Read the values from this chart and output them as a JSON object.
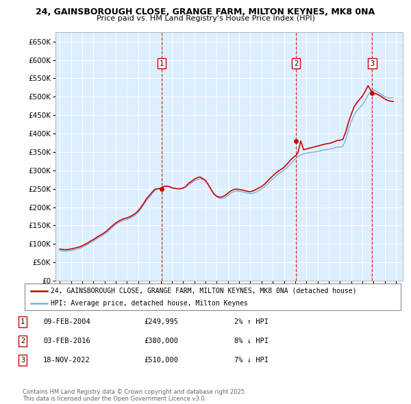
{
  "title_line1": "24, GAINSBOROUGH CLOSE, GRANGE FARM, MILTON KEYNES, MK8 0NA",
  "title_line2": "Price paid vs. HM Land Registry's House Price Index (HPI)",
  "plot_bg_color": "#ddeeff",
  "ylim": [
    0,
    675000
  ],
  "yticks": [
    0,
    50000,
    100000,
    150000,
    200000,
    250000,
    300000,
    350000,
    400000,
    450000,
    500000,
    550000,
    600000,
    650000
  ],
  "sale_dates": [
    "2004-02-09",
    "2016-02-03",
    "2022-11-18"
  ],
  "sale_prices": [
    249995,
    380000,
    510000
  ],
  "sale_labels": [
    "1",
    "2",
    "3"
  ],
  "hpi_line_color": "#7bb0d4",
  "price_line_color": "#cc0000",
  "vline_color": "#cc0000",
  "grid_color": "#ffffff",
  "legend_label_price": "24, GAINSBOROUGH CLOSE, GRANGE FARM, MILTON KEYNES, MK8 0NA (detached house)",
  "legend_label_hpi": "HPI: Average price, detached house, Milton Keynes",
  "table_entries": [
    {
      "num": "1",
      "date": "09-FEB-2004",
      "price": "£249,995",
      "pct": "2%",
      "dir": "↑",
      "ref": "HPI"
    },
    {
      "num": "2",
      "date": "03-FEB-2016",
      "price": "£380,000",
      "pct": "8%",
      "dir": "↓",
      "ref": "HPI"
    },
    {
      "num": "3",
      "date": "18-NOV-2022",
      "price": "£510,000",
      "pct": "7%",
      "dir": "↓",
      "ref": "HPI"
    }
  ],
  "footnote": "Contains HM Land Registry data © Crown copyright and database right 2025.\nThis data is licensed under the Open Government Licence v3.0.",
  "hpi_data_x": [
    1995.0,
    1995.25,
    1995.5,
    1995.75,
    1996.0,
    1996.25,
    1996.5,
    1996.75,
    1997.0,
    1997.25,
    1997.5,
    1997.75,
    1998.0,
    1998.25,
    1998.5,
    1998.75,
    1999.0,
    1999.25,
    1999.5,
    1999.75,
    2000.0,
    2000.25,
    2000.5,
    2000.75,
    2001.0,
    2001.25,
    2001.5,
    2001.75,
    2002.0,
    2002.25,
    2002.5,
    2002.75,
    2003.0,
    2003.25,
    2003.5,
    2003.75,
    2004.0,
    2004.25,
    2004.5,
    2004.75,
    2005.0,
    2005.25,
    2005.5,
    2005.75,
    2006.0,
    2006.25,
    2006.5,
    2006.75,
    2007.0,
    2007.25,
    2007.5,
    2007.75,
    2008.0,
    2008.25,
    2008.5,
    2008.75,
    2009.0,
    2009.25,
    2009.5,
    2009.75,
    2010.0,
    2010.25,
    2010.5,
    2010.75,
    2011.0,
    2011.25,
    2011.5,
    2011.75,
    2012.0,
    2012.25,
    2012.5,
    2012.75,
    2013.0,
    2013.25,
    2013.5,
    2013.75,
    2014.0,
    2014.25,
    2014.5,
    2014.75,
    2015.0,
    2015.25,
    2015.5,
    2015.75,
    2016.0,
    2016.25,
    2016.5,
    2016.75,
    2017.0,
    2017.25,
    2017.5,
    2017.75,
    2018.0,
    2018.25,
    2018.5,
    2018.75,
    2019.0,
    2019.25,
    2019.5,
    2019.75,
    2020.0,
    2020.25,
    2020.5,
    2020.75,
    2021.0,
    2021.25,
    2021.5,
    2021.75,
    2022.0,
    2022.25,
    2022.5,
    2022.75,
    2023.0,
    2023.25,
    2023.5,
    2023.75,
    2024.0,
    2024.25,
    2024.5,
    2024.75
  ],
  "hpi_data_y": [
    82000,
    81000,
    80500,
    81000,
    82500,
    84000,
    86000,
    88000,
    91000,
    95000,
    99000,
    104000,
    108000,
    113000,
    118000,
    122000,
    127000,
    133000,
    140000,
    147000,
    153000,
    158000,
    162000,
    165000,
    167000,
    170000,
    174000,
    179000,
    186000,
    196000,
    207000,
    219000,
    228000,
    237000,
    245000,
    250000,
    253000,
    256000,
    257000,
    256000,
    253000,
    251000,
    250000,
    250000,
    252000,
    256000,
    261000,
    266000,
    271000,
    275000,
    277000,
    276000,
    272000,
    262000,
    249000,
    236000,
    228000,
    224000,
    223000,
    226000,
    232000,
    238000,
    242000,
    244000,
    243000,
    242000,
    240000,
    238000,
    237000,
    238000,
    241000,
    245000,
    249000,
    255000,
    262000,
    270000,
    277000,
    284000,
    290000,
    295000,
    300000,
    307000,
    315000,
    322000,
    330000,
    337000,
    342000,
    345000,
    347000,
    348000,
    349000,
    350000,
    351000,
    353000,
    355000,
    356000,
    357000,
    359000,
    361000,
    363000,
    363000,
    365000,
    383000,
    410000,
    432000,
    450000,
    462000,
    470000,
    478000,
    490000,
    505000,
    515000,
    518000,
    515000,
    510000,
    505000,
    500000,
    498000,
    497000,
    498000
  ],
  "price_data_x": [
    1995.0,
    1995.25,
    1995.5,
    1995.75,
    1996.0,
    1996.25,
    1996.5,
    1996.75,
    1997.0,
    1997.25,
    1997.5,
    1997.75,
    1998.0,
    1998.25,
    1998.5,
    1998.75,
    1999.0,
    1999.25,
    1999.5,
    1999.75,
    2000.0,
    2000.25,
    2000.5,
    2000.75,
    2001.0,
    2001.25,
    2001.5,
    2001.75,
    2002.0,
    2002.25,
    2002.5,
    2002.75,
    2003.0,
    2003.25,
    2003.5,
    2003.75,
    2004.083,
    2004.25,
    2004.5,
    2004.75,
    2005.0,
    2005.25,
    2005.5,
    2005.75,
    2006.0,
    2006.25,
    2006.5,
    2006.75,
    2007.0,
    2007.25,
    2007.5,
    2007.75,
    2008.0,
    2008.25,
    2008.5,
    2008.75,
    2009.0,
    2009.25,
    2009.5,
    2009.75,
    2010.0,
    2010.25,
    2010.5,
    2010.75,
    2011.0,
    2011.25,
    2011.5,
    2011.75,
    2012.0,
    2012.25,
    2012.5,
    2012.75,
    2013.0,
    2013.25,
    2013.5,
    2013.75,
    2014.0,
    2014.25,
    2014.5,
    2014.75,
    2015.0,
    2015.25,
    2015.5,
    2015.75,
    2016.083,
    2016.25,
    2016.5,
    2016.75,
    2017.0,
    2017.25,
    2017.5,
    2017.75,
    2018.0,
    2018.25,
    2018.5,
    2018.75,
    2019.0,
    2019.25,
    2019.5,
    2019.75,
    2020.0,
    2020.25,
    2020.5,
    2020.75,
    2021.0,
    2021.25,
    2021.5,
    2021.75,
    2022.0,
    2022.25,
    2022.5,
    2022.9,
    2023.0,
    2023.25,
    2023.5,
    2023.75,
    2024.0,
    2024.25,
    2024.5,
    2024.75
  ],
  "price_data_y": [
    86000,
    85000,
    84500,
    85000,
    86500,
    88000,
    90000,
    92000,
    95000,
    99000,
    103000,
    108000,
    112000,
    117000,
    122000,
    126000,
    131000,
    137000,
    144000,
    151000,
    157000,
    162000,
    166000,
    169000,
    171000,
    174000,
    178000,
    183000,
    190000,
    200000,
    211000,
    223000,
    232000,
    241000,
    249000,
    249995,
    249995,
    256000,
    257000,
    256000,
    253000,
    251000,
    250000,
    250000,
    252000,
    256000,
    265000,
    270000,
    276000,
    280000,
    282000,
    278000,
    272000,
    261000,
    248000,
    236000,
    230000,
    227000,
    228000,
    232000,
    238000,
    244000,
    248000,
    249000,
    248000,
    247000,
    245000,
    243000,
    242000,
    244000,
    248000,
    252000,
    256000,
    262000,
    270000,
    278000,
    285000,
    292000,
    298000,
    303000,
    308000,
    316000,
    325000,
    333000,
    341000,
    348000,
    380000,
    356000,
    358000,
    360000,
    362000,
    364000,
    366000,
    368000,
    370000,
    372000,
    373000,
    375000,
    378000,
    381000,
    382000,
    384000,
    403000,
    430000,
    452000,
    472000,
    484000,
    493000,
    502000,
    515000,
    530000,
    510000,
    510000,
    508000,
    504000,
    499000,
    494000,
    490000,
    488000,
    487000
  ]
}
